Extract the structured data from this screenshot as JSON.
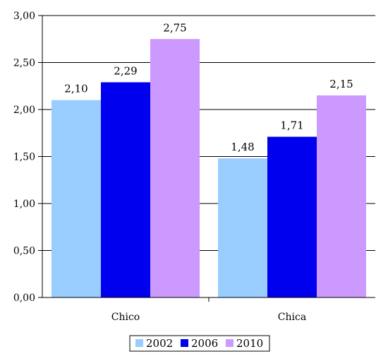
{
  "chart_data": {
    "type": "bar",
    "categories": [
      "Chico",
      "Chica"
    ],
    "series": [
      {
        "name": "2002",
        "color": "#99ccff",
        "values": [
          2.1,
          1.48
        ],
        "labels": [
          "2,10",
          "1,48"
        ]
      },
      {
        "name": "2006",
        "color": "#0000ee",
        "values": [
          2.29,
          1.71
        ],
        "labels": [
          "2,29",
          "1,71"
        ]
      },
      {
        "name": "2010",
        "color": "#cc99ff",
        "values": [
          2.75,
          2.15
        ],
        "labels": [
          "2,75",
          "2,15"
        ]
      }
    ],
    "ylim": [
      0,
      3
    ],
    "yticks": [
      "0,00",
      "0,50",
      "1,00",
      "1,50",
      "2,00",
      "2,50",
      "3,00"
    ],
    "title": "",
    "xlabel": "",
    "ylabel": "",
    "grid": true,
    "legend_position": "bottom"
  }
}
